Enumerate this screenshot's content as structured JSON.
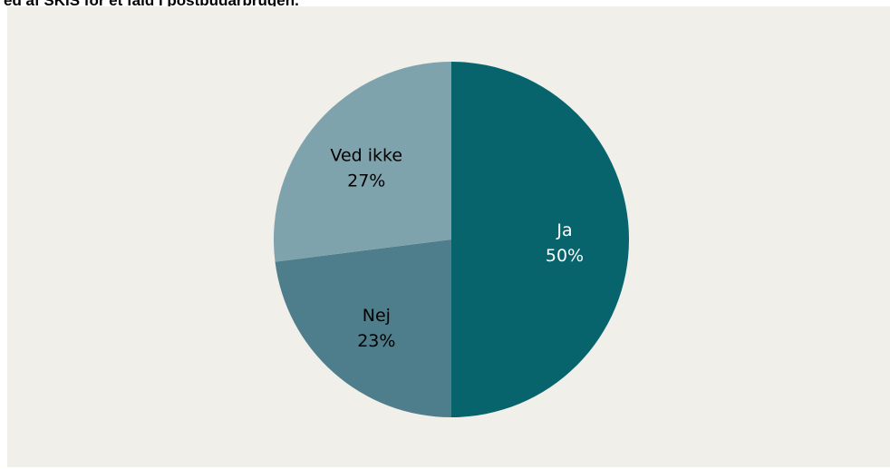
{
  "title": "ed af SKIS for et fald i postbudarbrugen.",
  "chart_data": {
    "type": "pie",
    "title": "",
    "start": "12 o'clock",
    "direction": "clockwise",
    "slices": [
      {
        "label": "Ja",
        "value": 50,
        "value_label": "50%",
        "color": "#07646c",
        "text_color": "#ffffff"
      },
      {
        "label": "Nej",
        "value": 23,
        "value_label": "23%",
        "color": "#4e7e8b",
        "text_color": "#000000"
      },
      {
        "label": "Ved ikke",
        "value": 27,
        "value_label": "27%",
        "color": "#7fa3ad",
        "text_color": "#000000"
      }
    ]
  }
}
